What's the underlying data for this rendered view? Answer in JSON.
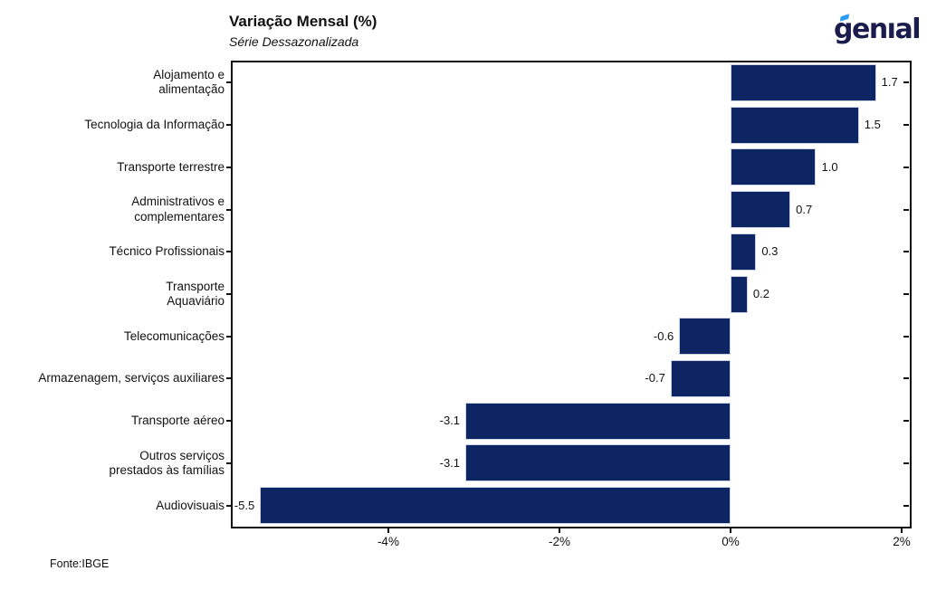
{
  "header": {
    "title": "Variação Mensal (%)",
    "subtitle": "Série Dessazonalizada",
    "logo": {
      "text": "genıal",
      "color": "#1b1c4e",
      "accent_color": "#2d9bf4"
    }
  },
  "footer": {
    "source": "Fonte:IBGE"
  },
  "chart_data": {
    "type": "bar",
    "orientation": "horizontal",
    "title": "Variação Mensal (%)",
    "subtitle": "Série Dessazonalizada",
    "categories": [
      "Alojamento e\nalimentação",
      "Tecnologia da Informação",
      "Transporte terrestre",
      "Administrativos e\ncomplementares",
      "Técnico Profissionais",
      "Transporte\nAquaviário",
      "Telecomunicações",
      "Armazenagem, serviços auxiliares",
      "Transporte aéreo",
      "Outros serviços\nprestados às famílias",
      "Audiovisuais"
    ],
    "values": [
      1.7,
      1.5,
      1.0,
      0.7,
      0.3,
      0.2,
      -0.6,
      -0.7,
      -3.1,
      -3.1,
      -5.5
    ],
    "value_labels": [
      "1.7",
      "1.5",
      "1.0",
      "0.7",
      "0.3",
      "0.2",
      "-0.6",
      "-0.7",
      "-3.1",
      "-3.1",
      "-5.5"
    ],
    "x_ticks": [
      -4,
      -2,
      0,
      2
    ],
    "x_tick_labels": [
      "-4%",
      "-2%",
      "0%",
      "2%"
    ],
    "xlim": [
      -5.83,
      2.095
    ],
    "grid": false,
    "legend": false,
    "bar_color": "#0e2564",
    "bar_border_color": "#ccd3e2",
    "axis_color": "#111111",
    "source": "Fonte:IBGE"
  }
}
